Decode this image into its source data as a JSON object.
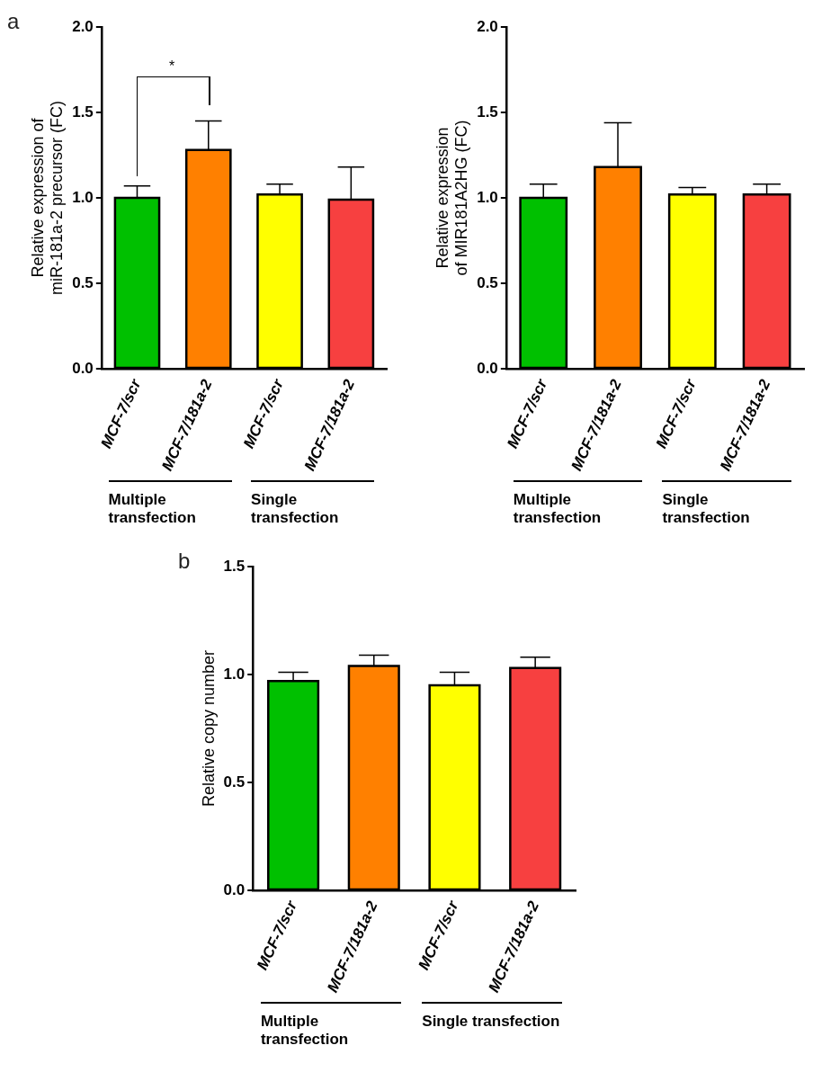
{
  "chart_data": [
    {
      "type": "bar",
      "ylabel": "Relative expression of miR-181a-2 precursor (FC)",
      "categories": [
        "MCF-7/scr",
        "MCF-7/181a-2",
        "MCF-7/scr",
        "MCF-7/181a-2"
      ],
      "values": [
        1.0,
        1.28,
        1.02,
        0.99
      ],
      "colors": [
        "#00c000",
        "#ff8000",
        "#ffff00",
        "#f74040"
      ],
      "errors": [
        [
          1.0,
          1.07
        ],
        [
          1.28,
          1.45
        ],
        [
          1.02,
          1.08
        ],
        [
          0.99,
          1.18
        ]
      ],
      "ylim": [
        0,
        2
      ],
      "yticks": [
        {
          "value": 0,
          "label": "0.0"
        },
        {
          "value": 0.5,
          "label": "0.5"
        },
        {
          "value": 1,
          "label": "1.0"
        },
        {
          "value": 1.5,
          "label": "1.5"
        },
        {
          "value": 2,
          "label": "2.0"
        }
      ],
      "grid": false,
      "annotations": [
        "a",
        "*",
        "Multiple transfection",
        "Single transfection"
      ]
    },
    {
      "type": "bar",
      "ylabel": "Relative expression of MIR181A2HG (FC)",
      "categories": [
        "MCF-7/scr",
        "MCF-7/181a-2",
        "MCF-7/scr",
        "MCF-7/181a-2"
      ],
      "values": [
        1.0,
        1.18,
        1.02,
        1.02
      ],
      "colors": [
        "#00c000",
        "#ff8000",
        "#ffff00",
        "#f74040"
      ],
      "errors": [
        [
          1.0,
          1.08
        ],
        [
          1.18,
          1.44
        ],
        [
          1.02,
          1.06
        ],
        [
          1.02,
          1.08
        ]
      ],
      "ylim": [
        0,
        2
      ],
      "yticks": [
        {
          "value": 0,
          "label": "0.0"
        },
        {
          "value": 0.5,
          "label": "0.5"
        },
        {
          "value": 1,
          "label": "1.0"
        },
        {
          "value": 1.5,
          "label": "1.5"
        },
        {
          "value": 2,
          "label": "2.0"
        }
      ],
      "grid": false,
      "annotations": [
        "Multiple transfection",
        "Single transfection"
      ]
    },
    {
      "type": "bar",
      "ylabel": "Relative copy number",
      "categories": [
        "MCF-7/scr",
        "MCF-7/181a-2",
        "MCF-7/scr",
        "MCF-7/181a-2"
      ],
      "values": [
        0.97,
        1.04,
        0.95,
        1.03
      ],
      "colors": [
        "#00c000",
        "#ff8000",
        "#ffff00",
        "#f74040"
      ],
      "errors": [
        [
          0.97,
          1.01
        ],
        [
          1.04,
          1.09
        ],
        [
          0.95,
          1.01
        ],
        [
          1.03,
          1.08
        ]
      ],
      "ylim": [
        0,
        1.5
      ],
      "yticks": [
        {
          "value": 0,
          "label": "0.0"
        },
        {
          "value": 0.5,
          "label": "0.5"
        },
        {
          "value": 1,
          "label": "1.0"
        },
        {
          "value": 1.5,
          "label": "1.5"
        }
      ],
      "grid": false,
      "annotations": [
        "b",
        "Multiple transfection",
        "Single transfection"
      ]
    }
  ]
}
